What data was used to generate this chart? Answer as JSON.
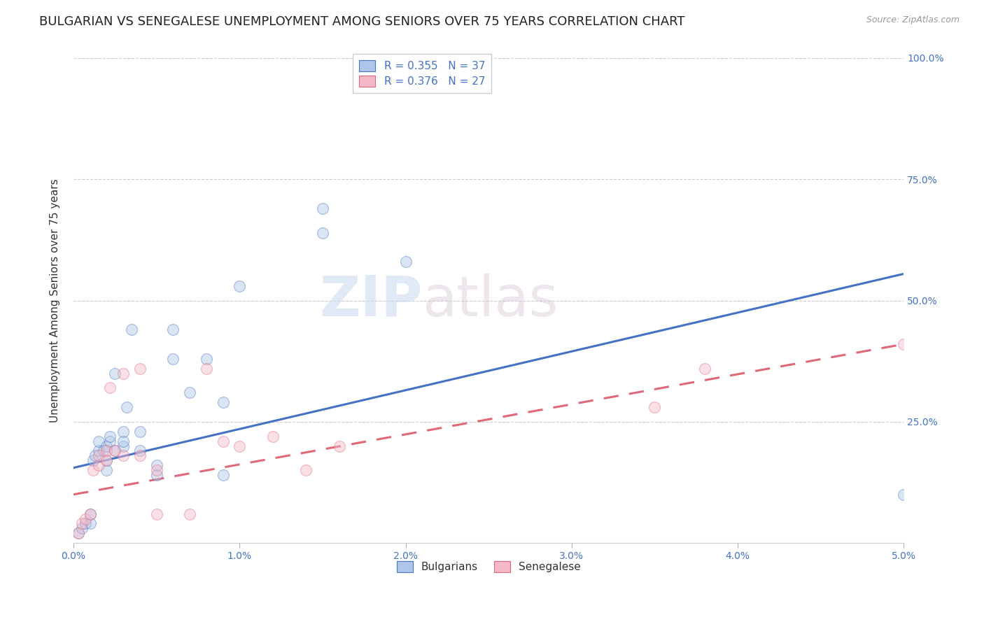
{
  "title": "BULGARIAN VS SENEGALESE UNEMPLOYMENT AMONG SENIORS OVER 75 YEARS CORRELATION CHART",
  "source": "Source: ZipAtlas.com",
  "ylabel": "Unemployment Among Seniors over 75 years",
  "xlabel": "",
  "xlim": [
    0.0,
    0.05
  ],
  "ylim": [
    0.0,
    1.0
  ],
  "xtick_labels": [
    "0.0%",
    "1.0%",
    "2.0%",
    "3.0%",
    "4.0%",
    "5.0%"
  ],
  "xtick_vals": [
    0.0,
    0.01,
    0.02,
    0.03,
    0.04,
    0.05
  ],
  "ytick_labels": [
    "25.0%",
    "50.0%",
    "75.0%",
    "100.0%"
  ],
  "ytick_vals": [
    0.25,
    0.5,
    0.75,
    1.0
  ],
  "blue_R": 0.355,
  "blue_N": 37,
  "pink_R": 0.376,
  "pink_N": 27,
  "blue_color": "#aec6e8",
  "pink_color": "#f4b8c8",
  "blue_line_color": "#4472c4",
  "pink_line_color": "#e06878",
  "legend_label_blue": "Bulgarians",
  "legend_label_pink": "Senegalese",
  "watermark_zip": "ZIP",
  "watermark_atlas": "atlas",
  "blue_scatter_x": [
    0.0003,
    0.0005,
    0.0007,
    0.001,
    0.001,
    0.0012,
    0.0013,
    0.0015,
    0.0015,
    0.0018,
    0.002,
    0.002,
    0.002,
    0.0022,
    0.0022,
    0.0025,
    0.0025,
    0.003,
    0.003,
    0.003,
    0.0032,
    0.0035,
    0.004,
    0.004,
    0.005,
    0.005,
    0.006,
    0.006,
    0.007,
    0.008,
    0.009,
    0.009,
    0.01,
    0.015,
    0.015,
    0.02,
    0.05
  ],
  "blue_scatter_y": [
    0.02,
    0.03,
    0.04,
    0.04,
    0.06,
    0.17,
    0.18,
    0.19,
    0.21,
    0.19,
    0.15,
    0.17,
    0.2,
    0.21,
    0.22,
    0.19,
    0.35,
    0.2,
    0.21,
    0.23,
    0.28,
    0.44,
    0.19,
    0.23,
    0.14,
    0.16,
    0.38,
    0.44,
    0.31,
    0.38,
    0.29,
    0.14,
    0.53,
    0.69,
    0.64,
    0.58,
    0.1
  ],
  "pink_scatter_x": [
    0.0003,
    0.0005,
    0.0007,
    0.001,
    0.0012,
    0.0015,
    0.0015,
    0.002,
    0.002,
    0.0022,
    0.0025,
    0.003,
    0.003,
    0.004,
    0.004,
    0.005,
    0.005,
    0.007,
    0.008,
    0.009,
    0.01,
    0.012,
    0.014,
    0.016,
    0.035,
    0.038,
    0.05
  ],
  "pink_scatter_y": [
    0.02,
    0.04,
    0.05,
    0.06,
    0.15,
    0.16,
    0.18,
    0.17,
    0.19,
    0.32,
    0.19,
    0.18,
    0.35,
    0.36,
    0.18,
    0.15,
    0.06,
    0.06,
    0.36,
    0.21,
    0.2,
    0.22,
    0.15,
    0.2,
    0.28,
    0.36,
    0.41
  ],
  "blue_line_x": [
    0.0,
    0.05
  ],
  "blue_line_y": [
    0.155,
    0.555
  ],
  "pink_line_x": [
    0.0,
    0.05
  ],
  "pink_line_y": [
    0.1,
    0.41
  ],
  "title_fontsize": 13,
  "axis_label_fontsize": 11,
  "tick_fontsize": 10,
  "legend_fontsize": 11,
  "scatter_size": 130,
  "scatter_alpha": 0.45,
  "background_color": "#ffffff",
  "grid_color": "#cccccc",
  "grid_linestyle": "--",
  "right_ytick_color": "#4472c4"
}
